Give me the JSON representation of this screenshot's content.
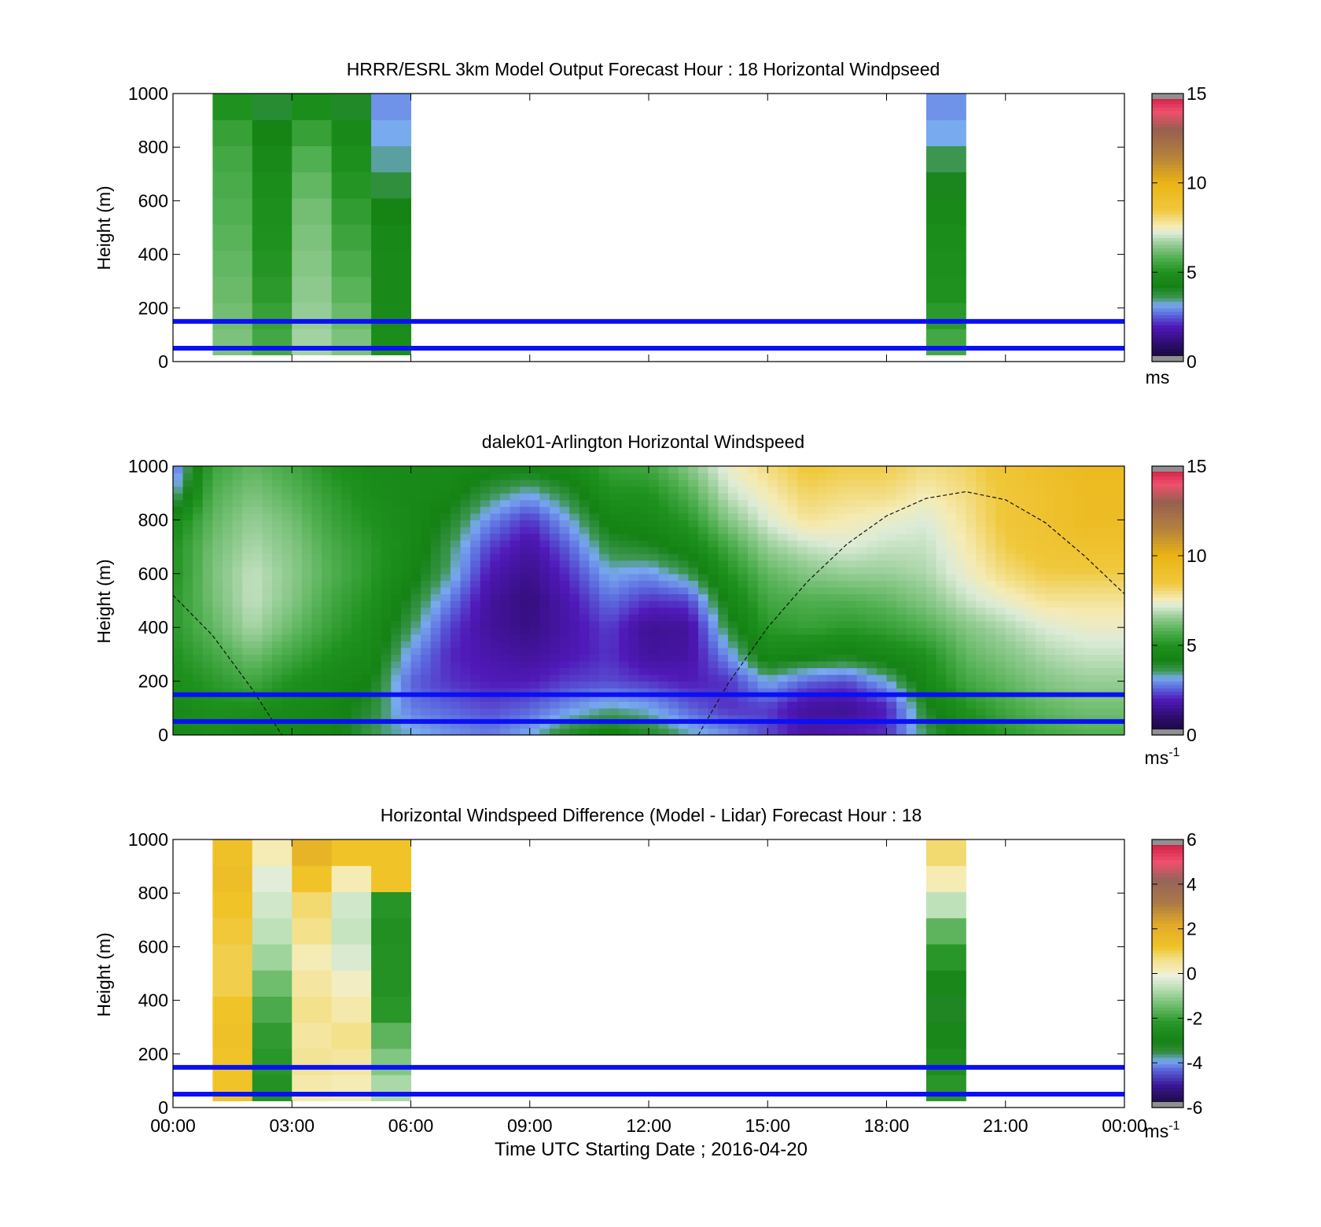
{
  "figure": {
    "xlabel": "Time UTC  Starting Date ; 2016-04-20",
    "x_ticks": [
      "00:00",
      "03:00",
      "06:00",
      "09:00",
      "12:00",
      "15:00",
      "18:00",
      "21:00",
      "00:00"
    ]
  },
  "chart_data": [
    {
      "type": "heatmap",
      "title": "HRRR/ESRL 3km Model Output   Forecast Hour : 18 Horizontal Windpseed",
      "ylabel": "Height (m)",
      "xlim": [
        0,
        24
      ],
      "ylim": [
        0,
        1000
      ],
      "y_ticks": [
        "0",
        "200",
        "400",
        "600",
        "800",
        "1000"
      ],
      "colorbar": {
        "ticks": [
          "0",
          "5",
          "10",
          "15"
        ],
        "tick_values": [
          0,
          5,
          10,
          15
        ],
        "range": [
          0,
          15
        ],
        "unit": "ms",
        "unit_sup": ""
      },
      "reference_lines_m": [
        150,
        50
      ],
      "columns": [
        {
          "x0": 1,
          "x1": 2,
          "z_top_m": 25,
          "z_bot_m": 1000,
          "values": [
            6.3,
            6.2,
            6.1,
            6.0,
            5.9,
            5.8,
            5.7,
            5.6,
            5.4,
            5.0
          ]
        },
        {
          "x0": 2,
          "x1": 3,
          "z_top_m": 25,
          "z_bot_m": 1000,
          "values": [
            5.6,
            5.4,
            5.2,
            5.1,
            5.0,
            4.9,
            4.8,
            4.6,
            4.3,
            3.9
          ]
        },
        {
          "x0": 3,
          "x1": 4,
          "z_top_m": 25,
          "z_bot_m": 1000,
          "values": [
            6.7,
            6.6,
            6.5,
            6.4,
            6.3,
            6.2,
            6.0,
            5.8,
            5.4,
            4.8
          ]
        },
        {
          "x0": 4,
          "x1": 5,
          "z_top_m": 25,
          "z_bot_m": 1000,
          "values": [
            6.3,
            6.1,
            5.9,
            5.7,
            5.5,
            5.3,
            5.1,
            4.9,
            4.6,
            4.0
          ]
        },
        {
          "x0": 5,
          "x1": 6,
          "z_top_m": 25,
          "z_bot_m": 1000,
          "values": [
            4.8,
            4.7,
            4.6,
            4.6,
            4.5,
            4.3,
            3.8,
            3.4,
            3.2,
            3.0
          ]
        },
        {
          "x0": 19,
          "x1": 20,
          "z_top_m": 25,
          "z_bot_m": 1000,
          "values": [
            5.6,
            5.2,
            5.0,
            4.9,
            4.8,
            4.6,
            4.1,
            3.6,
            3.2,
            3.0
          ]
        }
      ]
    },
    {
      "type": "heatmap",
      "title": "dalek01-Arlington  Horizontal Windspeed",
      "ylabel": "Height (m)",
      "xlim": [
        0,
        24
      ],
      "ylim": [
        0,
        1000
      ],
      "y_ticks": [
        "0",
        "200",
        "400",
        "600",
        "800",
        "1000"
      ],
      "colorbar": {
        "ticks": [
          "0",
          "5",
          "10",
          "15"
        ],
        "tick_values": [
          0,
          5,
          10,
          15
        ],
        "range": [
          0,
          15
        ],
        "unit": "ms",
        "unit_sup": "-1"
      },
      "reference_lines_m": [
        150,
        50
      ],
      "field": {
        "x_hours": [
          0,
          1,
          2,
          3,
          4,
          5,
          6,
          7,
          8,
          9,
          10,
          11,
          12,
          13,
          14,
          15,
          16,
          17,
          18,
          19,
          20,
          21,
          22,
          23,
          24
        ],
        "z_m": [
          0,
          100,
          200,
          300,
          400,
          500,
          600,
          700,
          800,
          900,
          1000
        ],
        "values": [
          [
            4.5,
            4.6,
            4.8,
            5.0,
            5.2,
            5.2,
            5.0,
            5.0,
            4.6,
            3.2,
            2.5
          ],
          [
            4.8,
            4.9,
            5.2,
            5.6,
            6.0,
            6.2,
            6.3,
            6.2,
            6.0,
            5.8,
            5.5
          ],
          [
            4.4,
            4.9,
            5.6,
            6.2,
            6.8,
            7.0,
            7.0,
            6.8,
            6.6,
            6.3,
            6.0
          ],
          [
            4.5,
            4.6,
            5.0,
            5.6,
            6.1,
            6.4,
            6.5,
            6.4,
            6.2,
            5.9,
            5.6
          ],
          [
            4.4,
            4.4,
            4.6,
            5.0,
            5.4,
            5.6,
            5.8,
            5.7,
            5.5,
            5.3,
            5.0
          ],
          [
            3.6,
            3.9,
            4.2,
            4.6,
            4.8,
            5.0,
            5.2,
            5.2,
            5.0,
            4.8,
            4.6
          ],
          [
            3.3,
            2.8,
            2.6,
            3.0,
            3.6,
            4.0,
            4.4,
            4.6,
            4.6,
            4.6,
            4.6
          ],
          [
            3.0,
            2.6,
            2.2,
            2.1,
            2.3,
            2.8,
            3.4,
            3.6,
            4.0,
            4.4,
            4.6
          ],
          [
            2.8,
            2.4,
            2.0,
            1.8,
            1.6,
            1.6,
            1.9,
            2.3,
            2.9,
            3.7,
            4.4
          ],
          [
            3.2,
            2.6,
            2.0,
            1.6,
            1.3,
            1.2,
            1.4,
            1.7,
            2.2,
            3.2,
            4.4
          ],
          [
            4.0,
            3.0,
            2.3,
            1.9,
            1.8,
            1.9,
            2.2,
            2.6,
            3.2,
            3.9,
            4.6
          ],
          [
            4.4,
            3.4,
            2.4,
            2.2,
            2.3,
            2.7,
            3.2,
            3.8,
            4.4,
            5.0,
            5.4
          ],
          [
            4.0,
            3.2,
            2.2,
            1.6,
            1.5,
            2.2,
            3.0,
            4.0,
            4.6,
            5.0,
            5.6
          ],
          [
            3.4,
            2.6,
            2.0,
            1.7,
            1.6,
            2.3,
            3.6,
            4.5,
            5.2,
            5.8,
            6.4
          ],
          [
            3.0,
            2.2,
            2.2,
            3.0,
            3.8,
            4.4,
            5.0,
            5.6,
            6.4,
            7.0,
            7.4
          ],
          [
            2.4,
            2.3,
            3.2,
            4.6,
            5.2,
            5.6,
            6.0,
            6.6,
            7.2,
            7.6,
            8.0
          ],
          [
            1.8,
            1.6,
            2.6,
            4.4,
            5.4,
            5.8,
            6.4,
            7.0,
            7.8,
            8.2,
            8.6
          ],
          [
            2.0,
            1.5,
            2.4,
            4.2,
            5.2,
            5.8,
            6.6,
            7.2,
            7.6,
            8.0,
            8.4
          ],
          [
            2.2,
            2.0,
            3.2,
            4.6,
            5.4,
            6.0,
            6.6,
            7.0,
            7.4,
            8.0,
            8.4
          ],
          [
            3.6,
            4.0,
            4.6,
            5.0,
            5.8,
            6.4,
            6.8,
            7.0,
            7.2,
            7.6,
            8.0
          ],
          [
            4.6,
            5.0,
            5.6,
            6.0,
            6.4,
            7.0,
            7.4,
            7.6,
            7.8,
            8.0,
            8.2
          ],
          [
            5.2,
            5.6,
            6.0,
            6.4,
            6.8,
            7.4,
            8.0,
            8.4,
            8.6,
            8.6,
            8.8
          ],
          [
            5.6,
            6.0,
            6.4,
            6.8,
            7.2,
            7.8,
            8.4,
            8.8,
            9.0,
            9.0,
            9.2
          ],
          [
            5.8,
            6.2,
            6.6,
            7.0,
            7.4,
            7.8,
            8.4,
            9.0,
            9.4,
            9.4,
            9.6
          ],
          [
            5.8,
            6.2,
            6.6,
            7.0,
            7.4,
            7.8,
            8.4,
            9.0,
            9.4,
            9.4,
            9.6
          ]
        ]
      },
      "dashed_curve": {
        "x_hours": [
          0,
          1,
          2,
          2.75,
          13.25,
          14,
          15,
          16,
          17,
          18,
          19,
          20,
          21,
          22,
          23,
          24
        ],
        "z_m": [
          520,
          370,
          170,
          0,
          0,
          190,
          400,
          570,
          710,
          815,
          880,
          905,
          875,
          790,
          665,
          525
        ]
      }
    },
    {
      "type": "heatmap",
      "title": "Horizontal Windspeed Difference (Model - Lidar) Forecast Hour : 18",
      "ylabel": "Height (m)",
      "xlim": [
        0,
        24
      ],
      "ylim": [
        0,
        1000
      ],
      "y_ticks": [
        "0",
        "200",
        "400",
        "600",
        "800",
        "1000"
      ],
      "colorbar": {
        "ticks": [
          "-6",
          "-4",
          "-2",
          "0",
          "2",
          "4",
          "6"
        ],
        "tick_values": [
          -6,
          -4,
          -2,
          0,
          2,
          4,
          6
        ],
        "range": [
          -6,
          6
        ],
        "unit": "ms",
        "unit_sup": "-1"
      },
      "reference_lines_m": [
        150,
        50
      ],
      "columns": [
        {
          "x0": 1,
          "x1": 2,
          "z_top_m": 25,
          "z_bot_m": 1000,
          "values": [
            1.2,
            1.2,
            1.3,
            1.2,
            1.0,
            1.0,
            1.1,
            1.2,
            1.4,
            1.3
          ]
        },
        {
          "x0": 2,
          "x1": 3,
          "z_top_m": 25,
          "z_bot_m": 1000,
          "values": [
            -2.4,
            -2.2,
            -2.1,
            -1.8,
            -1.4,
            -0.9,
            -0.6,
            -0.4,
            -0.2,
            0.2
          ]
        },
        {
          "x0": 3,
          "x1": 4,
          "z_top_m": 25,
          "z_bot_m": 1000,
          "values": [
            0.3,
            0.5,
            0.4,
            0.6,
            0.4,
            0.2,
            0.6,
            0.8,
            1.2,
            1.8
          ]
        },
        {
          "x0": 4,
          "x1": 5,
          "z_top_m": 25,
          "z_bot_m": 1000,
          "values": [
            0.2,
            0.4,
            0.6,
            0.3,
            0.1,
            -0.3,
            -0.5,
            -0.4,
            0.2,
            1.2
          ]
        },
        {
          "x0": 5,
          "x1": 6,
          "z_top_m": 25,
          "z_bot_m": 1000,
          "values": [
            -0.8,
            -1.2,
            -1.6,
            -2.2,
            -2.4,
            -2.4,
            -2.5,
            -2.3,
            1.2,
            1.2
          ]
        },
        {
          "x0": 19,
          "x1": 20,
          "z_top_m": 25,
          "z_bot_m": 1000,
          "values": [
            -2.2,
            -2.6,
            -2.8,
            -3.2,
            -2.8,
            -2.2,
            -1.6,
            -0.6,
            0.2,
            0.8
          ]
        }
      ]
    }
  ]
}
